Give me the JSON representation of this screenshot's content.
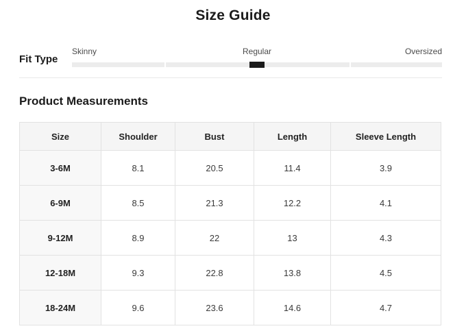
{
  "title": "Size Guide",
  "fit_type": {
    "label": "Fit Type",
    "options": [
      "Skinny",
      "Regular",
      "Oversized"
    ],
    "selected": "Regular",
    "selected_index": 1
  },
  "measurements": {
    "title": "Product Measurements",
    "table": {
      "columns": [
        "Size",
        "Shoulder",
        "Bust",
        "Length",
        "Sleeve Length"
      ],
      "rows": [
        [
          "3-6M",
          "8.1",
          "20.5",
          "11.4",
          "3.9"
        ],
        [
          "6-9M",
          "8.5",
          "21.3",
          "12.2",
          "4.1"
        ],
        [
          "9-12M",
          "8.9",
          "22",
          "13",
          "4.3"
        ],
        [
          "12-18M",
          "9.3",
          "22.8",
          "13.8",
          "4.5"
        ],
        [
          "18-24M",
          "9.6",
          "23.6",
          "14.6",
          "4.7"
        ]
      ]
    }
  },
  "colors": {
    "track": "#ececec",
    "handle": "#1a1a1a",
    "header_bg": "#f5f5f5",
    "row_label_bg": "#f8f8f8",
    "border": "#e2e2e2"
  }
}
